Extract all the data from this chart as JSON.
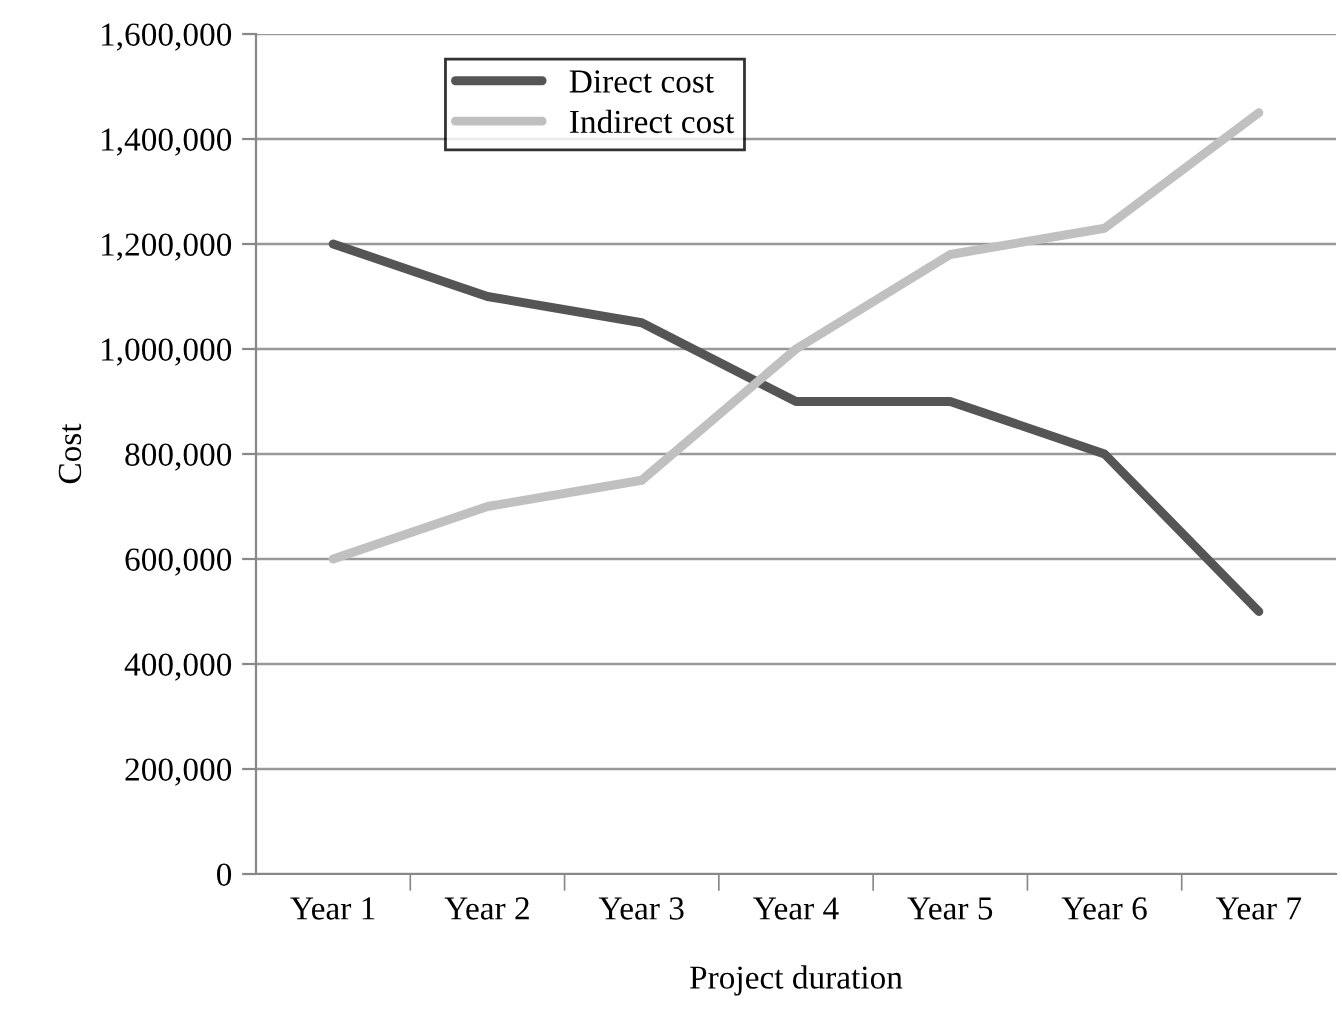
{
  "chart_data": {
    "type": "line",
    "xlabel": "Project duration",
    "ylabel": "Cost",
    "categories": [
      "Year 1",
      "Year 2",
      "Year 3",
      "Year 4",
      "Year 5",
      "Year 6",
      "Year 7"
    ],
    "series": [
      {
        "name": "Direct cost",
        "color": "#555555",
        "values": [
          1200000,
          1100000,
          1050000,
          900000,
          900000,
          800000,
          500000
        ]
      },
      {
        "name": "Indirect cost",
        "color": "#c0c0c0",
        "values": [
          600000,
          700000,
          750000,
          1000000,
          1180000,
          1230000,
          1450000
        ]
      }
    ],
    "ylim": [
      0,
      1600000
    ],
    "yticks": [
      {
        "value": 0,
        "label": "0"
      },
      {
        "value": 200000,
        "label": "200,000"
      },
      {
        "value": 400000,
        "label": "400,000"
      },
      {
        "value": 600000,
        "label": "600,000"
      },
      {
        "value": 800000,
        "label": "800,000"
      },
      {
        "value": 1000000,
        "label": "1,000,000"
      },
      {
        "value": 1200000,
        "label": "1,200,000"
      },
      {
        "value": 1400000,
        "label": "1,400,000"
      },
      {
        "value": 1600000,
        "label": "1,600,000"
      }
    ],
    "grid": "y",
    "legend": "top left",
    "marker": "none",
    "line_style": "solid"
  }
}
